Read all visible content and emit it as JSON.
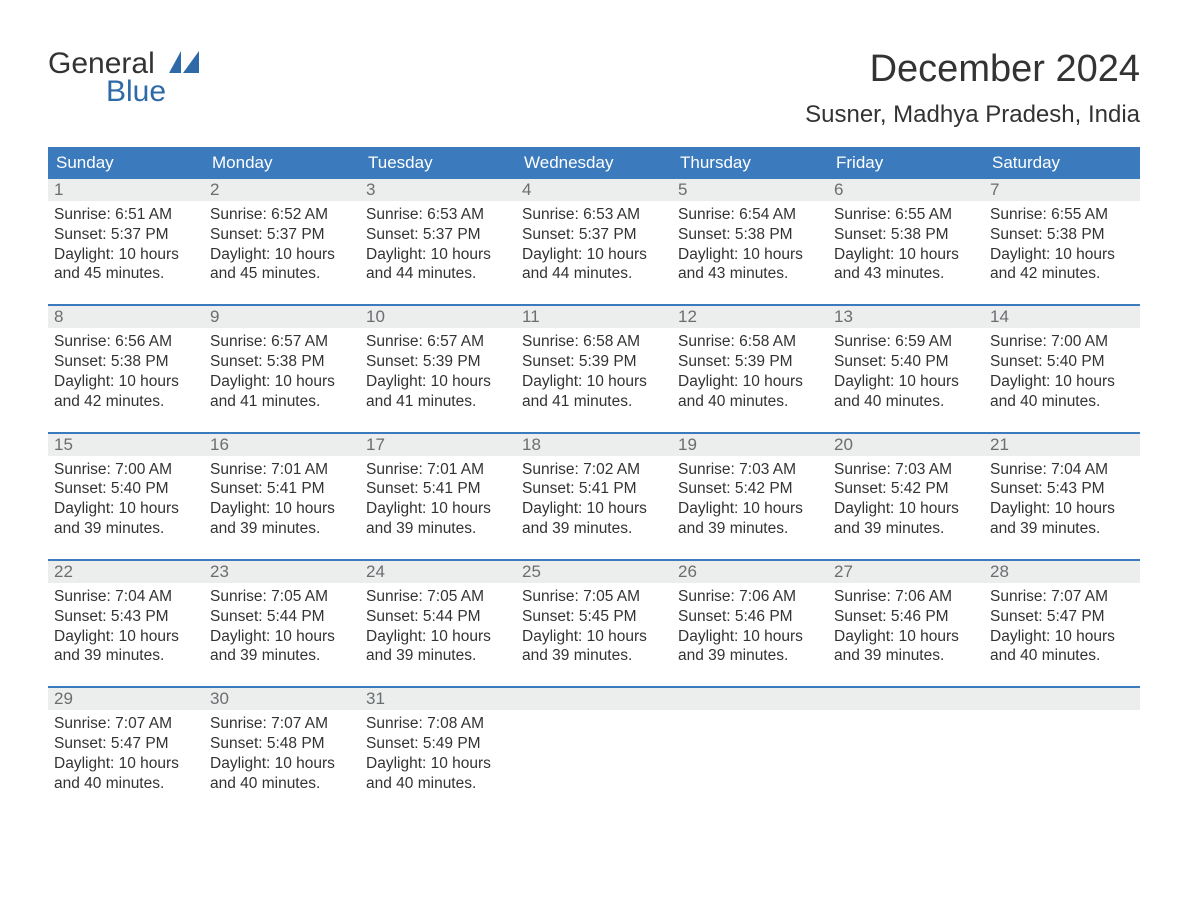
{
  "logo": {
    "word1": "General",
    "word2": "Blue",
    "mark_color": "#2f6aa8"
  },
  "title": "December 2024",
  "subtitle": "Susner, Madhya Pradesh, India",
  "colors": {
    "header_bg": "#3a7abd",
    "header_text": "#ffffff",
    "daynum_bg": "#eceded",
    "daynum_text": "#6b6e70",
    "body_text": "#333333",
    "week_divider": "#3a7abd",
    "background": "#ffffff"
  },
  "typography": {
    "title_fontsize": 38,
    "subtitle_fontsize": 24,
    "weekday_fontsize": 17,
    "daynum_fontsize": 17,
    "body_fontsize": 15.5,
    "font_family": "Arial"
  },
  "weekdays": [
    "Sunday",
    "Monday",
    "Tuesday",
    "Wednesday",
    "Thursday",
    "Friday",
    "Saturday"
  ],
  "weeks": [
    [
      {
        "n": "1",
        "sunrise": "Sunrise: 6:51 AM",
        "sunset": "Sunset: 5:37 PM",
        "d1": "Daylight: 10 hours",
        "d2": "and 45 minutes."
      },
      {
        "n": "2",
        "sunrise": "Sunrise: 6:52 AM",
        "sunset": "Sunset: 5:37 PM",
        "d1": "Daylight: 10 hours",
        "d2": "and 45 minutes."
      },
      {
        "n": "3",
        "sunrise": "Sunrise: 6:53 AM",
        "sunset": "Sunset: 5:37 PM",
        "d1": "Daylight: 10 hours",
        "d2": "and 44 minutes."
      },
      {
        "n": "4",
        "sunrise": "Sunrise: 6:53 AM",
        "sunset": "Sunset: 5:37 PM",
        "d1": "Daylight: 10 hours",
        "d2": "and 44 minutes."
      },
      {
        "n": "5",
        "sunrise": "Sunrise: 6:54 AM",
        "sunset": "Sunset: 5:38 PM",
        "d1": "Daylight: 10 hours",
        "d2": "and 43 minutes."
      },
      {
        "n": "6",
        "sunrise": "Sunrise: 6:55 AM",
        "sunset": "Sunset: 5:38 PM",
        "d1": "Daylight: 10 hours",
        "d2": "and 43 minutes."
      },
      {
        "n": "7",
        "sunrise": "Sunrise: 6:55 AM",
        "sunset": "Sunset: 5:38 PM",
        "d1": "Daylight: 10 hours",
        "d2": "and 42 minutes."
      }
    ],
    [
      {
        "n": "8",
        "sunrise": "Sunrise: 6:56 AM",
        "sunset": "Sunset: 5:38 PM",
        "d1": "Daylight: 10 hours",
        "d2": "and 42 minutes."
      },
      {
        "n": "9",
        "sunrise": "Sunrise: 6:57 AM",
        "sunset": "Sunset: 5:38 PM",
        "d1": "Daylight: 10 hours",
        "d2": "and 41 minutes."
      },
      {
        "n": "10",
        "sunrise": "Sunrise: 6:57 AM",
        "sunset": "Sunset: 5:39 PM",
        "d1": "Daylight: 10 hours",
        "d2": "and 41 minutes."
      },
      {
        "n": "11",
        "sunrise": "Sunrise: 6:58 AM",
        "sunset": "Sunset: 5:39 PM",
        "d1": "Daylight: 10 hours",
        "d2": "and 41 minutes."
      },
      {
        "n": "12",
        "sunrise": "Sunrise: 6:58 AM",
        "sunset": "Sunset: 5:39 PM",
        "d1": "Daylight: 10 hours",
        "d2": "and 40 minutes."
      },
      {
        "n": "13",
        "sunrise": "Sunrise: 6:59 AM",
        "sunset": "Sunset: 5:40 PM",
        "d1": "Daylight: 10 hours",
        "d2": "and 40 minutes."
      },
      {
        "n": "14",
        "sunrise": "Sunrise: 7:00 AM",
        "sunset": "Sunset: 5:40 PM",
        "d1": "Daylight: 10 hours",
        "d2": "and 40 minutes."
      }
    ],
    [
      {
        "n": "15",
        "sunrise": "Sunrise: 7:00 AM",
        "sunset": "Sunset: 5:40 PM",
        "d1": "Daylight: 10 hours",
        "d2": "and 39 minutes."
      },
      {
        "n": "16",
        "sunrise": "Sunrise: 7:01 AM",
        "sunset": "Sunset: 5:41 PM",
        "d1": "Daylight: 10 hours",
        "d2": "and 39 minutes."
      },
      {
        "n": "17",
        "sunrise": "Sunrise: 7:01 AM",
        "sunset": "Sunset: 5:41 PM",
        "d1": "Daylight: 10 hours",
        "d2": "and 39 minutes."
      },
      {
        "n": "18",
        "sunrise": "Sunrise: 7:02 AM",
        "sunset": "Sunset: 5:41 PM",
        "d1": "Daylight: 10 hours",
        "d2": "and 39 minutes."
      },
      {
        "n": "19",
        "sunrise": "Sunrise: 7:03 AM",
        "sunset": "Sunset: 5:42 PM",
        "d1": "Daylight: 10 hours",
        "d2": "and 39 minutes."
      },
      {
        "n": "20",
        "sunrise": "Sunrise: 7:03 AM",
        "sunset": "Sunset: 5:42 PM",
        "d1": "Daylight: 10 hours",
        "d2": "and 39 minutes."
      },
      {
        "n": "21",
        "sunrise": "Sunrise: 7:04 AM",
        "sunset": "Sunset: 5:43 PM",
        "d1": "Daylight: 10 hours",
        "d2": "and 39 minutes."
      }
    ],
    [
      {
        "n": "22",
        "sunrise": "Sunrise: 7:04 AM",
        "sunset": "Sunset: 5:43 PM",
        "d1": "Daylight: 10 hours",
        "d2": "and 39 minutes."
      },
      {
        "n": "23",
        "sunrise": "Sunrise: 7:05 AM",
        "sunset": "Sunset: 5:44 PM",
        "d1": "Daylight: 10 hours",
        "d2": "and 39 minutes."
      },
      {
        "n": "24",
        "sunrise": "Sunrise: 7:05 AM",
        "sunset": "Sunset: 5:44 PM",
        "d1": "Daylight: 10 hours",
        "d2": "and 39 minutes."
      },
      {
        "n": "25",
        "sunrise": "Sunrise: 7:05 AM",
        "sunset": "Sunset: 5:45 PM",
        "d1": "Daylight: 10 hours",
        "d2": "and 39 minutes."
      },
      {
        "n": "26",
        "sunrise": "Sunrise: 7:06 AM",
        "sunset": "Sunset: 5:46 PM",
        "d1": "Daylight: 10 hours",
        "d2": "and 39 minutes."
      },
      {
        "n": "27",
        "sunrise": "Sunrise: 7:06 AM",
        "sunset": "Sunset: 5:46 PM",
        "d1": "Daylight: 10 hours",
        "d2": "and 39 minutes."
      },
      {
        "n": "28",
        "sunrise": "Sunrise: 7:07 AM",
        "sunset": "Sunset: 5:47 PM",
        "d1": "Daylight: 10 hours",
        "d2": "and 40 minutes."
      }
    ],
    [
      {
        "n": "29",
        "sunrise": "Sunrise: 7:07 AM",
        "sunset": "Sunset: 5:47 PM",
        "d1": "Daylight: 10 hours",
        "d2": "and 40 minutes."
      },
      {
        "n": "30",
        "sunrise": "Sunrise: 7:07 AM",
        "sunset": "Sunset: 5:48 PM",
        "d1": "Daylight: 10 hours",
        "d2": "and 40 minutes."
      },
      {
        "n": "31",
        "sunrise": "Sunrise: 7:08 AM",
        "sunset": "Sunset: 5:49 PM",
        "d1": "Daylight: 10 hours",
        "d2": "and 40 minutes."
      },
      null,
      null,
      null,
      null
    ]
  ]
}
